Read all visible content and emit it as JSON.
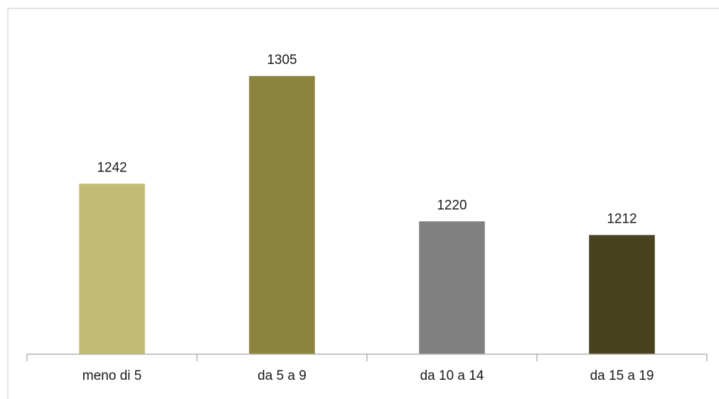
{
  "chart_data": {
    "type": "bar",
    "title": "",
    "xlabel": "",
    "ylabel": "",
    "categories": [
      "meno di 5",
      "da 5 a 9",
      "da 10 a 14",
      "da 15 a 19"
    ],
    "values": [
      1242,
      1305,
      1220,
      1212
    ],
    "value_labels": [
      "1242",
      "1305",
      "1220",
      "1212"
    ],
    "colors": [
      "#c2bb76",
      "#8d853f",
      "#808080",
      "#48421f"
    ],
    "ylim": [
      1142,
      1320
    ],
    "grid": false,
    "legend": "none"
  }
}
